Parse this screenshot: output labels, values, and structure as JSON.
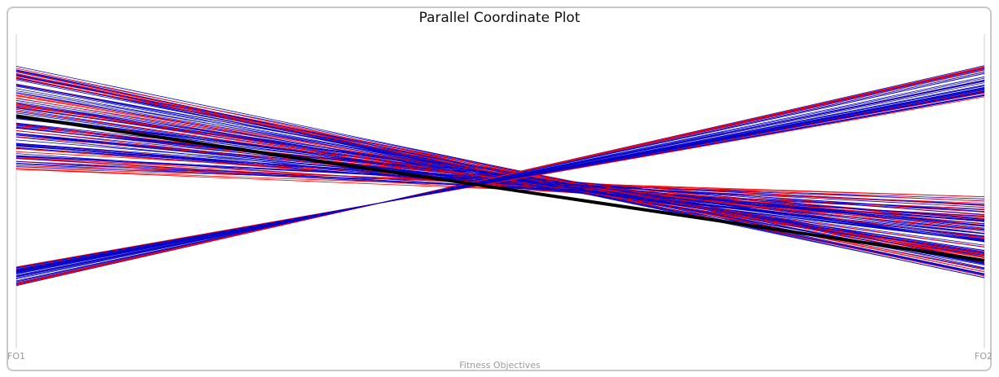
{
  "chart_data": {
    "type": "parallel_coordinates",
    "title": "Parallel Coordinate Plot",
    "xlabel": "Fitness Objectives",
    "axes": [
      "FO1",
      "FO2"
    ],
    "value_range": [
      0,
      1
    ],
    "colors": {
      "primary": "#0000cc",
      "secondary": "#ff0000",
      "highlight": "#000000"
    },
    "highlight_line": {
      "FO1": 0.74,
      "FO2": 0.28
    },
    "bundles": [
      {
        "name": "descending",
        "count": 120,
        "FO1_range": [
          0.57,
          0.9
        ],
        "FO2_range": [
          0.2,
          0.5
        ]
      },
      {
        "name": "ascending",
        "count": 55,
        "FO1_range": [
          0.2,
          0.26
        ],
        "FO2_range": [
          0.8,
          0.9
        ]
      }
    ]
  }
}
